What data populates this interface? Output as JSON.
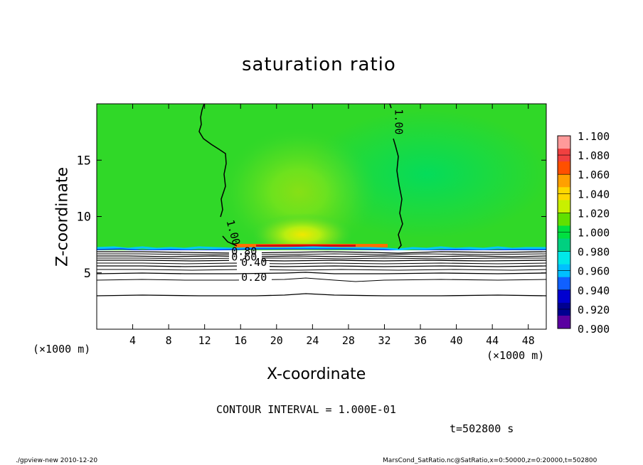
{
  "chart_data": {
    "type": "heatmap",
    "title": "saturation ratio",
    "xlabel": "X-coordinate",
    "ylabel": "Z-coordinate",
    "x_unit": "(×1000 m)",
    "y_unit": "(×1000 m)",
    "xlim": [
      0,
      50
    ],
    "ylim": [
      0,
      20
    ],
    "x_ticks": [
      4,
      8,
      12,
      16,
      20,
      24,
      28,
      32,
      36,
      40,
      44,
      48
    ],
    "y_ticks": [
      5,
      10,
      15
    ],
    "colorbar": {
      "levels": [
        "1.100",
        "1.080",
        "1.060",
        "1.040",
        "1.020",
        "1.000",
        "0.980",
        "0.960",
        "0.940",
        "0.920",
        "0.900"
      ],
      "colors": [
        "#ff9a9a",
        "#f04040",
        "#ff5000",
        "#ffa000",
        "#ffd700",
        "#c8f000",
        "#60e000",
        "#00e040",
        "#00d080",
        "#00e8e8",
        "#00c0ff",
        "#1060ff",
        "#0000d0",
        "#000090",
        "#5a00a0"
      ]
    },
    "contour_labels": [
      {
        "text": "1.00",
        "x": 14.8,
        "z": 8.5
      },
      {
        "text": "1.00",
        "x": 33.2,
        "z": 18.4
      },
      {
        "text": "0.80",
        "x": 16.4,
        "z": 6.6
      },
      {
        "text": "0.60",
        "x": 16.4,
        "z": 6.1
      },
      {
        "text": "0.40",
        "x": 17.5,
        "z": 5.6
      },
      {
        "text": "0.20",
        "x": 17.5,
        "z": 4.3
      }
    ],
    "contour_interval": "CONTOUR INTERVAL = 1.000E-01"
  },
  "time_label": "t=502800  s",
  "footer": {
    "left": "./gpview-new   2010-12-20",
    "right": "MarsCond_SatRatio.nc@SatRatio,x=0:50000,z=0:20000,t=502800"
  }
}
